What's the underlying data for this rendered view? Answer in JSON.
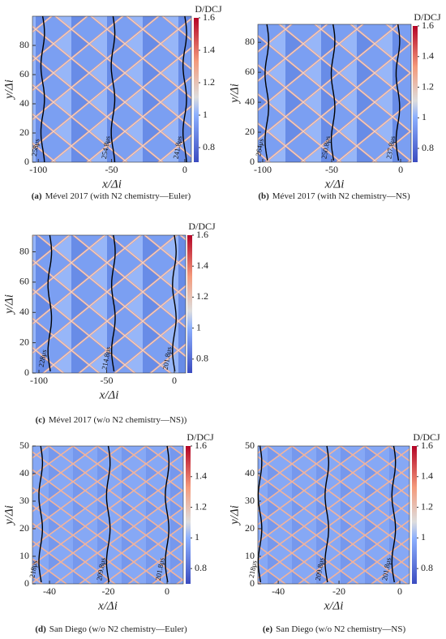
{
  "chart_data": [
    {
      "type": "heatmap",
      "caption_label": "(a)",
      "caption": "Mével 2017 (with N2 chemistry—Euler)",
      "xlabel": "x/Δi",
      "ylabel": "y/Δi",
      "colorbar_label": "D/DCJ",
      "xlim": [
        -104,
        4.5
      ],
      "ylim": [
        0,
        100
      ],
      "xticks": [
        -100,
        -50,
        0
      ],
      "yticks": [
        0,
        20,
        40,
        60,
        80
      ],
      "clim": [
        0.71,
        1.6
      ],
      "cticks": [
        {
          "value": 0.8,
          "label": "0.8"
        },
        1,
        {
          "value": 1.2,
          "label": "1.2"
        },
        {
          "value": 1.4,
          "label": "1.4"
        },
        {
          "value": 1.6,
          "label": "1.6"
        }
      ],
      "fronts": [
        {
          "x": -97,
          "label": "258μs"
        },
        {
          "x": -49,
          "label": "254.8μs"
        },
        {
          "x": 0,
          "label": "241.8μs"
        }
      ]
    },
    {
      "type": "heatmap",
      "caption_label": "(b)",
      "caption": "Mével 2017 (with N2 chemistry—NS)",
      "xlabel": "x/Δi",
      "ylabel": "y/Δi",
      "colorbar_label": "D/DCJ",
      "xlim": [
        -103.5,
        7.6
      ],
      "ylim": [
        0,
        92
      ],
      "xticks": [
        -100,
        -50,
        0
      ],
      "yticks": [
        0,
        20,
        40,
        60,
        80
      ],
      "clim": [
        0.71,
        1.6
      ],
      "cticks": [
        {
          "value": 0.8,
          "label": "0.8"
        },
        1,
        {
          "value": 1.2,
          "label": "1.2"
        },
        {
          "value": 1.4,
          "label": "1.4"
        },
        {
          "value": 1.6,
          "label": "1.6"
        }
      ],
      "fronts": [
        {
          "x": -97,
          "label": "264μs"
        },
        {
          "x": -49,
          "label": "250.8μs"
        },
        {
          "x": -2,
          "label": "237.8μs"
        }
      ]
    },
    {
      "type": "heatmap",
      "caption_label": "(c)",
      "caption": "Mével 2017 (w/o N2 chemistry—NS))",
      "xlabel": "x/Δi",
      "ylabel": "y/Δi",
      "colorbar_label": "D/DCJ",
      "xlim": [
        -104.8,
        8.4
      ],
      "ylim": [
        0,
        91
      ],
      "xticks": [
        -100,
        -50,
        0
      ],
      "yticks": [
        0,
        20,
        40,
        60,
        80
      ],
      "clim": [
        0.71,
        1.6
      ],
      "cticks": [
        {
          "value": 0.8,
          "label": "0.8"
        },
        1,
        {
          "value": 1.2,
          "label": "1.2"
        },
        {
          "value": 1.4,
          "label": "1.4"
        },
        {
          "value": 1.6,
          "label": "1.6"
        }
      ],
      "fronts": [
        {
          "x": -92,
          "label": "228μs"
        },
        {
          "x": -45,
          "label": "214.8μs"
        },
        {
          "x": 0,
          "label": "201.8μs"
        }
      ]
    },
    {
      "type": "heatmap",
      "caption_label": "(d)",
      "caption": "San Diego (w/o N2 chemistry—Euler)",
      "xlabel": "x/Δi",
      "ylabel": "y/Δi",
      "colorbar_label": "D/DCJ",
      "xlim": [
        -45.8,
        5.5
      ],
      "ylim": [
        0,
        50
      ],
      "xticks": [
        -40,
        -20,
        0
      ],
      "yticks": [
        0,
        10,
        20,
        30,
        40,
        50
      ],
      "clim": [
        0.7,
        1.6
      ],
      "cticks": [
        {
          "value": 0.8,
          "label": "0.8"
        },
        1,
        {
          "value": 1.2,
          "label": "1.2"
        },
        {
          "value": 1.4,
          "label": "1.4"
        },
        {
          "value": 1.6,
          "label": "1.6"
        }
      ],
      "fronts": [
        {
          "x": -43,
          "label": "218μs"
        },
        {
          "x": -20,
          "label": "209.8μs"
        },
        {
          "x": 0,
          "label": "201.8μs"
        }
      ]
    },
    {
      "type": "heatmap",
      "caption_label": "(e)",
      "caption": "San Diego (w/o N2 chemistry—NS)",
      "xlabel": "x/Δi",
      "ylabel": "y/Δi",
      "colorbar_label": "D/DCJ",
      "xlim": [
        -46.7,
        3.2
      ],
      "ylim": [
        0,
        50
      ],
      "xticks": [
        -40,
        -20,
        0
      ],
      "yticks": [
        0,
        10,
        20,
        30,
        40,
        50
      ],
      "clim": [
        0.7,
        1.6
      ],
      "cticks": [
        {
          "value": 0.8,
          "label": "0.8"
        },
        1,
        {
          "value": 1.2,
          "label": "1.2"
        },
        {
          "value": 1.4,
          "label": "1.4"
        },
        {
          "value": 1.6,
          "label": "1.6"
        }
      ],
      "fronts": [
        {
          "x": -46,
          "label": "218μs"
        },
        {
          "x": -24,
          "label": "209.8μs"
        },
        {
          "x": -2,
          "label": "201.8μs"
        }
      ]
    }
  ]
}
